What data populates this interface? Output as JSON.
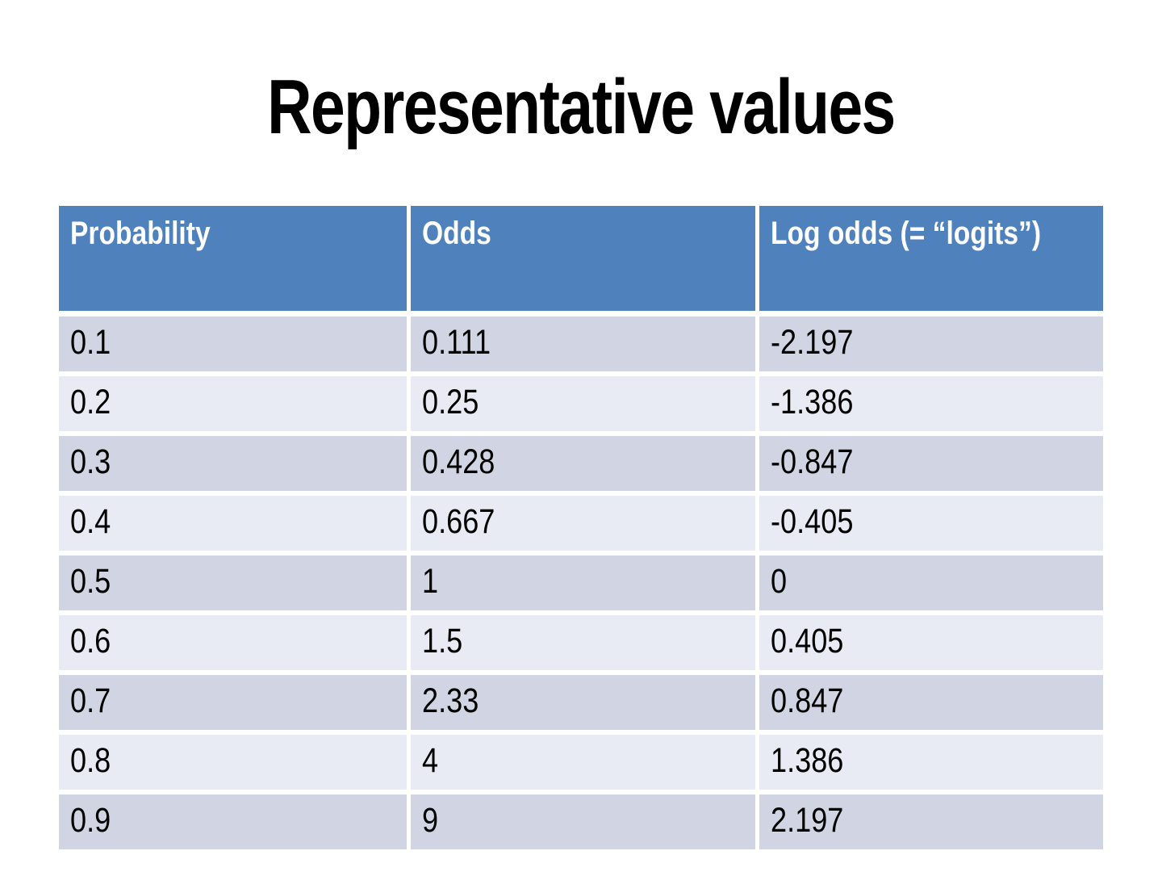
{
  "slide": {
    "title": "Representative values"
  },
  "table": {
    "columns": [
      "Probability",
      "Odds",
      "Log odds (= “logits”)"
    ],
    "rows": [
      [
        "0.1",
        "0.111",
        "-2.197"
      ],
      [
        "0.2",
        "0.25",
        "-1.386"
      ],
      [
        "0.3",
        "0.428",
        "-0.847"
      ],
      [
        "0.4",
        "0.667",
        "-0.405"
      ],
      [
        "0.5",
        "1",
        "0"
      ],
      [
        "0.6",
        "1.5",
        "0.405"
      ],
      [
        "0.7",
        "2.33",
        "0.847"
      ],
      [
        "0.8",
        "4",
        "1.386"
      ],
      [
        "0.9",
        "9",
        "2.197"
      ]
    ]
  },
  "colors": {
    "header_bg": "#4F81BD",
    "header_text": "#FFFFFF",
    "band_dark": "#D1D5E3",
    "band_light": "#E9EBF4",
    "body_text": "#000000",
    "background": "#FFFFFF"
  }
}
